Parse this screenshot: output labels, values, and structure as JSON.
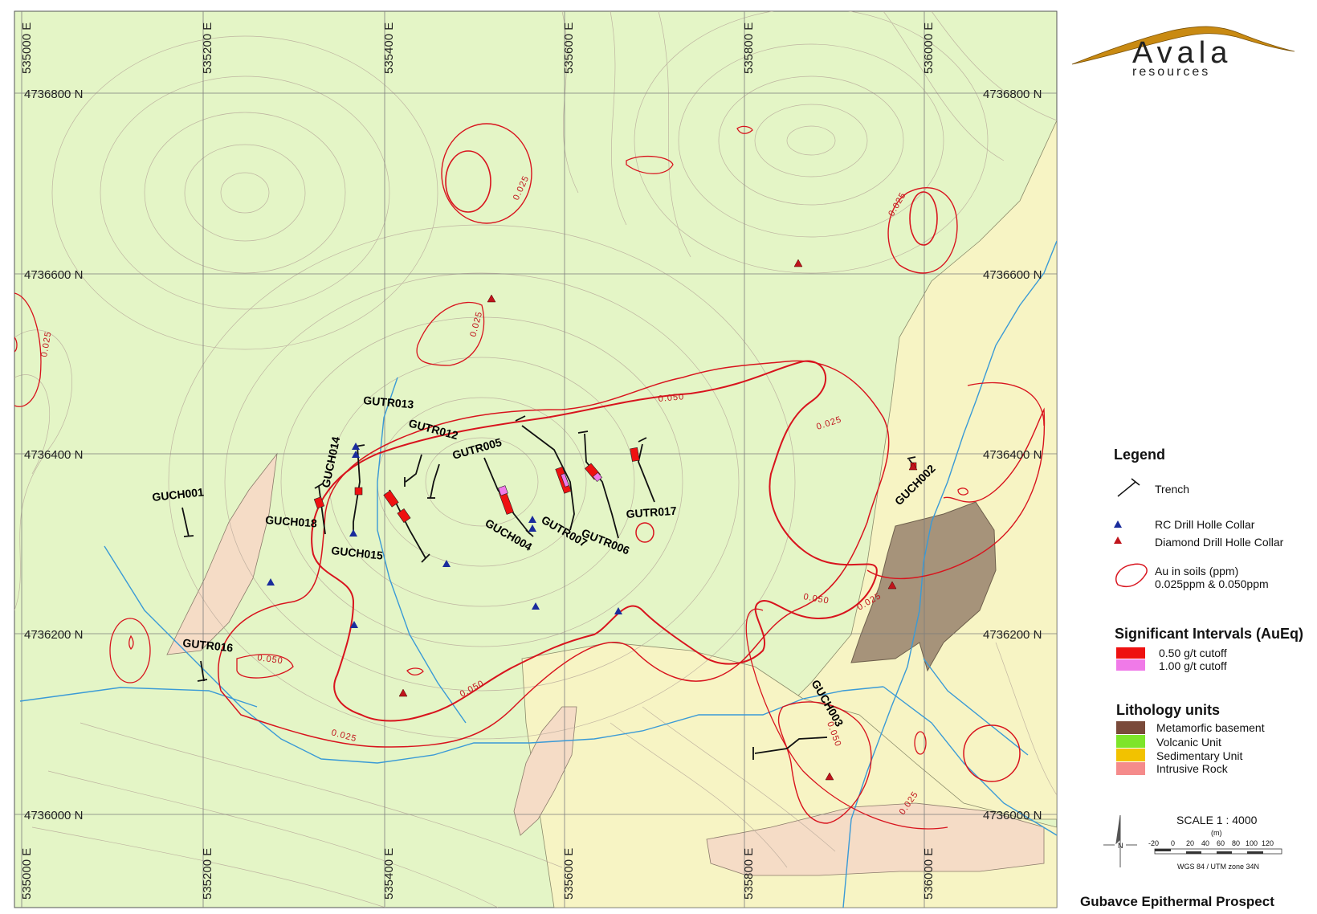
{
  "brand": {
    "logo_line1": "Avala",
    "logo_line2": "resources"
  },
  "title": "Gubavce Epithermal Prospect",
  "grid": {
    "eastings": [
      {
        "label": "535000 E",
        "x": 535000
      },
      {
        "label": "535200 E",
        "x": 535200
      },
      {
        "label": "535400 E",
        "x": 535400
      },
      {
        "label": "535600 E",
        "x": 535600
      },
      {
        "label": "535800 E",
        "x": 535800
      },
      {
        "label": "536000 E",
        "x": 536000
      }
    ],
    "northings": [
      {
        "label": "4736800 N",
        "y": 4736800
      },
      {
        "label": "4736600 N",
        "y": 4736600
      },
      {
        "label": "4736400 N",
        "y": 4736400
      },
      {
        "label": "4736200 N",
        "y": 4736200
      },
      {
        "label": "4736000 N",
        "y": 4736000
      }
    ]
  },
  "trench_labels": [
    "GUCH001",
    "GUCH014",
    "GUCH018",
    "GUCH015",
    "GUTR013",
    "GUTR012",
    "GUTR005",
    "GUCH004",
    "GUTR007",
    "GUTR006",
    "GUTR017",
    "GUTR016",
    "GUCH002",
    "GUCH003"
  ],
  "contour_labels": [
    "0.025",
    "0.050"
  ],
  "legend": {
    "title": "Legend",
    "trench": "Trench",
    "rc_collar": "RC Drill Holle Collar",
    "dd_collar": "Diamond Drill Holle Collar",
    "au_line1": "Au in soils (ppm)",
    "au_line2": "0.025ppm & 0.050ppm",
    "sig_title": "Significant Intervals (AuEq)",
    "sig_050": "0.50 g/t cutoff",
    "sig_100": "1.00 g/t cutoff",
    "litho_title": "Lithology units",
    "litho": [
      {
        "label": "Metamorfic basement",
        "color": "#7a4a3a"
      },
      {
        "label": "Volcanic Unit",
        "color": "#7ee52a"
      },
      {
        "label": "Sedimentary Unit",
        "color": "#f2c200"
      },
      {
        "label": "Intrusive Rock",
        "color": "#f58b8b"
      }
    ]
  },
  "scale": {
    "title": "SCALE  1 : 4000",
    "unit": "(m)",
    "ticks": [
      "-20",
      "0",
      "20",
      "40",
      "60",
      "80",
      "100",
      "120"
    ],
    "datum": "WGS 84 / UTM zone 34N",
    "north": "N"
  },
  "colors": {
    "volcanic_fill": "#e4f5c6",
    "sedimentary_fill": "#f7f4c4",
    "intrusive_fill": "#f5dcc6",
    "metamorphic_fill": "#a6937a",
    "soil_contour": "#d8141e",
    "stream": "#3a9ad6",
    "sig_050": "#ee1111",
    "sig_100": "#f07ae8",
    "rc_marker": "#1a2c9c",
    "dd_marker": "#c0141c"
  }
}
